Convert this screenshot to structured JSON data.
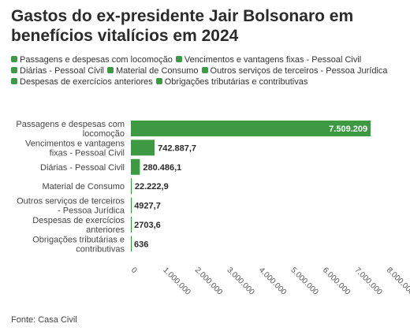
{
  "title": "Gastos do ex-presidente Jair Bolsonaro em benefícios vitalícios em 2024",
  "source": "Fonte: Casa Civil",
  "colors": {
    "bar": "#3e9a42"
  },
  "chart_data": {
    "type": "bar",
    "orientation": "horizontal",
    "title": "Gastos do ex-presidente Jair Bolsonaro em benefícios vitalícios em 2024",
    "categories": [
      "Passagens e despesas com locomoção",
      "Vencimentos e vantagens fixas - Pessoal Civil",
      "Diárias - Pessoal Civil",
      "Material de Consumo",
      "Outros serviços de terceiros - Pessoa Jurídica",
      "Despesas de exercícios anteriores",
      "Obrigações tributárias e contributivas"
    ],
    "category_labels": [
      [
        "Passagens e despesas com",
        "locomoção"
      ],
      [
        "Vencimentos e vantagens",
        "fixas - Pessoal Civil"
      ],
      [
        "Diárias - Pessoal Civil"
      ],
      [
        "Material de Consumo"
      ],
      [
        "Outros serviços de terceiros",
        "- Pessoa Jurídica"
      ],
      [
        "Despesas de exercícios",
        "anteriores"
      ],
      [
        "Obrigações tributárias e",
        "contributivas"
      ]
    ],
    "values": [
      7509209,
      742887.7,
      280486.1,
      22222.9,
      4927.7,
      2703.6,
      636
    ],
    "value_labels": [
      "7.509.209",
      "742.887,7",
      "280.486,1",
      "22.222,9",
      "4927,7",
      "2703,6",
      "636"
    ],
    "legend": [
      "Passagens e despesas com locomoção",
      "Vencimentos e vantagens fixas - Pessoal Civil",
      "Diárias - Pessoal Civil",
      "Material de Consumo",
      "Outros serviços de terceiros - Pessoa Jurídica",
      "Despesas de exercícios anteriores",
      "Obrigações tributárias e contributivas"
    ],
    "legend_position": "top",
    "xlim": [
      0,
      8000000
    ],
    "xticks": [
      0,
      1000000,
      2000000,
      3000000,
      4000000,
      5000000,
      6000000,
      7000000,
      8000000
    ],
    "xtick_labels": [
      "0",
      "1.000.000",
      "2.000.000",
      "3.000.000",
      "4.000.000",
      "5.000.000",
      "6.000.000",
      "7.000.000",
      "8.000.000"
    ],
    "grid": false
  }
}
